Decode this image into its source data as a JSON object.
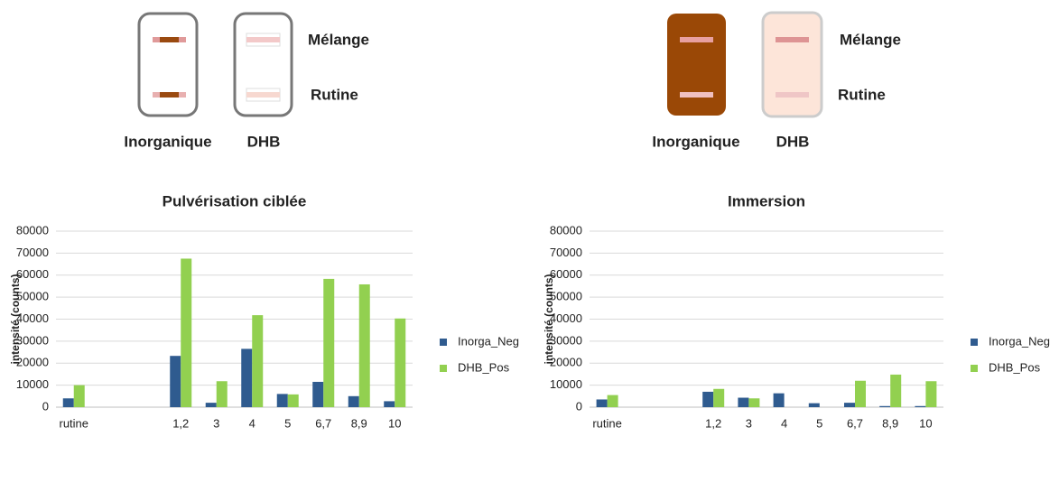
{
  "diagrams": [
    {
      "strips": [
        "Inorganique",
        "DHB"
      ],
      "rows": [
        "Mélange",
        "Rutine"
      ]
    },
    {
      "strips": [
        "Inorganique",
        "DHB"
      ],
      "rows": [
        "Mélange",
        "Rutine"
      ]
    }
  ],
  "chart_data": [
    {
      "type": "bar",
      "title": "Pulvérisation ciblée",
      "y_label": "intensité (counts)",
      "categories": [
        "rutine",
        null,
        null,
        "1,2",
        "3",
        "4",
        "5",
        "6,7",
        "8,9",
        "10"
      ],
      "series": [
        {
          "name": "Inorga_Neg",
          "color": "#2f5b8f",
          "values": [
            4000,
            null,
            null,
            23300,
            2000,
            26500,
            6000,
            11500,
            5000,
            2700
          ]
        },
        {
          "name": "DHB_Pos",
          "color": "#92d050",
          "values": [
            10000,
            null,
            null,
            67500,
            11800,
            41800,
            5800,
            58300,
            55800,
            40300
          ]
        }
      ],
      "ylim": [
        0,
        80000
      ],
      "yticks": [
        0,
        10000,
        20000,
        30000,
        40000,
        50000,
        60000,
        70000,
        80000
      ],
      "grid": true,
      "legend": "right"
    },
    {
      "type": "bar",
      "title": "Immersion",
      "y_label": "intensité (counts)",
      "categories": [
        "rutine",
        null,
        null,
        "1,2",
        "3",
        "4",
        "5",
        "6,7",
        "8,9",
        "10"
      ],
      "series": [
        {
          "name": "Inorga_Neg",
          "color": "#2f5b8f",
          "values": [
            3500,
            null,
            null,
            7000,
            4300,
            6300,
            1800,
            2000,
            500,
            500
          ]
        },
        {
          "name": "DHB_Pos",
          "color": "#92d050",
          "values": [
            5500,
            null,
            null,
            8300,
            4000,
            null,
            null,
            12000,
            14800,
            11800
          ]
        }
      ],
      "ylim": [
        0,
        80000
      ],
      "yticks": [
        0,
        10000,
        20000,
        30000,
        40000,
        50000,
        60000,
        70000,
        80000
      ],
      "grid": true,
      "legend": "right"
    }
  ]
}
